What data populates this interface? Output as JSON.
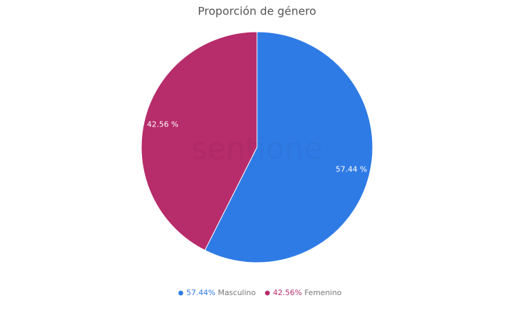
{
  "chart_data": {
    "type": "pie",
    "title": "Proporción de género",
    "categories": [
      "Masculino",
      "Femenino"
    ],
    "values": [
      57.44,
      42.56
    ],
    "value_labels": [
      "57.44 %",
      "42.56 %"
    ],
    "legend_labels": [
      "57.44%",
      "42.56%"
    ],
    "colors": [
      "#2f7be6",
      "#b72c6b"
    ],
    "watermark": "sentione"
  }
}
